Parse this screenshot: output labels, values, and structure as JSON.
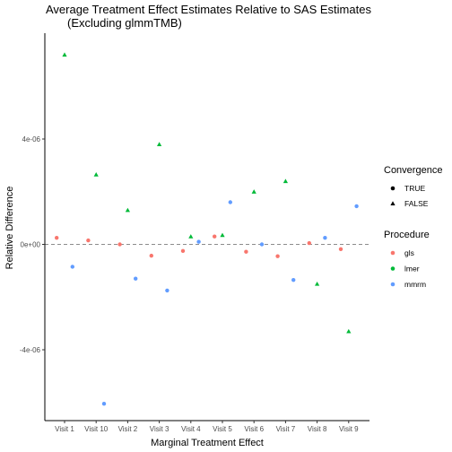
{
  "chart_data": {
    "type": "scatter",
    "title": "Average Treatment Effect Estimates Relative to SAS Estimates",
    "subtitle": "(Excluding glmmTMB)",
    "xlabel": "Marginal Treatment Effect",
    "ylabel": "Relative Difference",
    "categories": [
      "Visit 1",
      "Visit 10",
      "Visit 2",
      "Visit 3",
      "Visit 4",
      "Visit 5",
      "Visit 6",
      "Visit 7",
      "Visit 8",
      "Visit 9"
    ],
    "y_ticks": [
      {
        "value": -4e-06,
        "label": "-4e-06"
      },
      {
        "value": 0,
        "label": "0e+00"
      },
      {
        "value": 4e-06,
        "label": "4e-06"
      }
    ],
    "ylim": [
      -6.7e-06,
      7.6e-06
    ],
    "reference_line": 0,
    "grid": false,
    "series": [
      {
        "name": "gls",
        "color": "#F8766D",
        "offset": -0.25,
        "values": [
          2.5e-07,
          1.5e-07,
          0.0,
          -4.3e-07,
          -2.5e-07,
          3e-07,
          -2.8e-07,
          -4.5e-07,
          5e-08,
          -1.8e-07
        ],
        "converged": [
          true,
          true,
          true,
          true,
          true,
          true,
          true,
          true,
          true,
          true
        ]
      },
      {
        "name": "lmer",
        "color": "#00BA38",
        "offset": 0,
        "values": [
          7.2e-06,
          2.65e-06,
          1.3e-06,
          3.8e-06,
          3e-07,
          3.5e-07,
          2e-06,
          2.4e-06,
          -1.5e-06,
          -3.3e-06
        ],
        "converged": [
          false,
          false,
          false,
          false,
          false,
          false,
          false,
          false,
          false,
          false
        ]
      },
      {
        "name": "mmrm",
        "color": "#619CFF",
        "offset": 0.25,
        "values": [
          -8.5e-07,
          -6.05e-06,
          -1.3e-06,
          -1.75e-06,
          1e-07,
          1.6e-06,
          0.0,
          -1.35e-06,
          2.5e-07,
          1.45e-06
        ],
        "converged": [
          true,
          true,
          true,
          true,
          true,
          true,
          true,
          true,
          true,
          true
        ]
      }
    ],
    "legend": {
      "placement": "right",
      "convergence": {
        "title": "Convergence",
        "items": [
          {
            "label": "TRUE",
            "shape": "circle"
          },
          {
            "label": "FALSE",
            "shape": "triangle"
          }
        ]
      },
      "procedure": {
        "title": "Procedure",
        "items": [
          {
            "label": "gls",
            "color": "#F8766D"
          },
          {
            "label": "lmer",
            "color": "#00BA38"
          },
          {
            "label": "mmrm",
            "color": "#619CFF"
          }
        ]
      }
    }
  }
}
